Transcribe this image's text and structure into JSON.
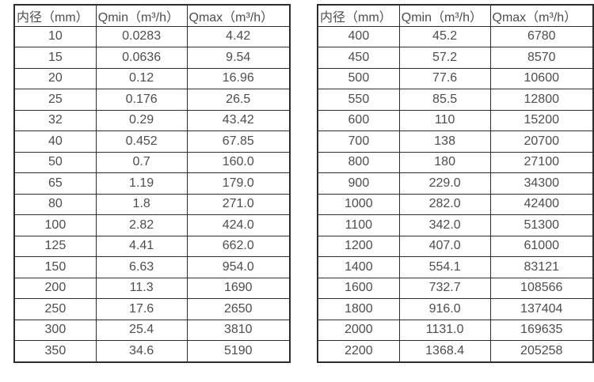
{
  "text_color": "#4d4d4d",
  "border_color": "#2d2d2d",
  "chart_data": [
    {
      "type": "table",
      "title": "",
      "headers": [
        "内径（mm）",
        "Qmin（m³/h）",
        "Qmax（m³/h）"
      ],
      "rows": [
        [
          "10",
          "0.0283",
          "4.42"
        ],
        [
          "15",
          "0.0636",
          "9.54"
        ],
        [
          "20",
          "0.12",
          "16.96"
        ],
        [
          "25",
          "0.176",
          "26.5"
        ],
        [
          "32",
          "0.29",
          "43.42"
        ],
        [
          "40",
          "0.452",
          "67.85"
        ],
        [
          "50",
          "0.7",
          "160.0"
        ],
        [
          "65",
          "1.19",
          "179.0"
        ],
        [
          "80",
          "1.8",
          "271.0"
        ],
        [
          "100",
          "2.82",
          "424.0"
        ],
        [
          "125",
          "4.41",
          "662.0"
        ],
        [
          "150",
          "6.63",
          "954.0"
        ],
        [
          "200",
          "11.3",
          "1690"
        ],
        [
          "250",
          "17.6",
          "2650"
        ],
        [
          "300",
          "25.4",
          "3810"
        ],
        [
          "350",
          "34.6",
          "5190"
        ]
      ]
    },
    {
      "type": "table",
      "title": "",
      "headers": [
        "内径（mm）",
        "Qmin（m³/h）",
        "Qmax（m³/h）"
      ],
      "rows": [
        [
          "400",
          "45.2",
          "6780"
        ],
        [
          "450",
          "57.2",
          "8570"
        ],
        [
          "500",
          "77.6",
          "10600"
        ],
        [
          "550",
          "85.5",
          "12800"
        ],
        [
          "600",
          "110",
          "15200"
        ],
        [
          "700",
          "138",
          "20700"
        ],
        [
          "800",
          "180",
          "27100"
        ],
        [
          "900",
          "229.0",
          "34300"
        ],
        [
          "1000",
          "282.0",
          "42400"
        ],
        [
          "1100",
          "342.0",
          "51300"
        ],
        [
          "1200",
          "407.0",
          "61000"
        ],
        [
          "1400",
          "554.1",
          "83121"
        ],
        [
          "1600",
          "732.7",
          "108566"
        ],
        [
          "1800",
          "916.0",
          "137404"
        ],
        [
          "2000",
          "1131.0",
          "169635"
        ],
        [
          "2200",
          "1368.4",
          "205258"
        ]
      ]
    }
  ]
}
